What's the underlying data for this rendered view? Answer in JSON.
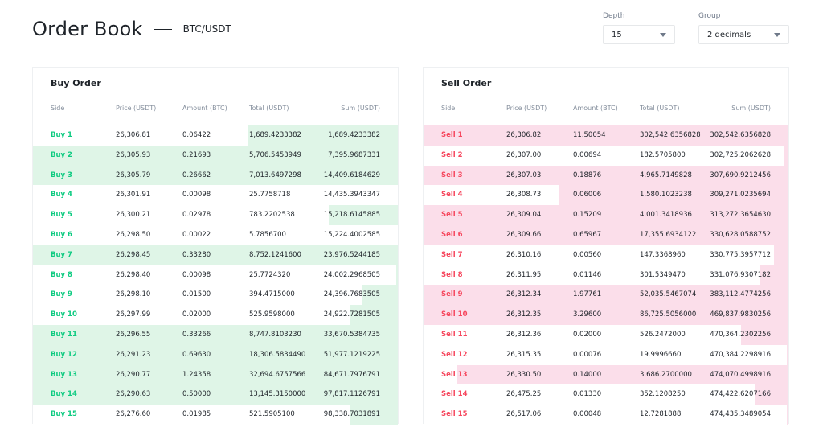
{
  "header": {
    "title": "Order Book",
    "pair": "BTC/USDT"
  },
  "controls": {
    "depth": {
      "label": "Depth",
      "value": "15"
    },
    "group": {
      "label": "Group",
      "value": "2 decimals"
    }
  },
  "columns": [
    "Side",
    "Price (USDT)",
    "Amount (BTC)",
    "Total (USDT)",
    "Sum (USDT)"
  ],
  "colors": {
    "buy": "#0ecb81",
    "buy_bg": "#dff5e7",
    "sell": "#f6465d",
    "sell_bg": "#fbdeea"
  },
  "buy": {
    "title": "Buy Order",
    "rows": [
      {
        "side": "Buy 1",
        "price": "26,306.81",
        "amount": "0.06422",
        "total": "1,689.4233382",
        "sum": "1,689.4233382",
        "full": false,
        "depth": 0.41
      },
      {
        "side": "Buy 2",
        "price": "26,305.93",
        "amount": "0.21693",
        "total": "5,706.5453949",
        "sum": "7,395.9687331",
        "full": true,
        "depth": 1
      },
      {
        "side": "Buy 3",
        "price": "26,305.79",
        "amount": "0.26662",
        "total": "7,013.6497298",
        "sum": "14,409.6184629",
        "full": true,
        "depth": 1
      },
      {
        "side": "Buy 4",
        "price": "26,301.91",
        "amount": "0.00098",
        "total": "25.7758718",
        "sum": "14,435.3943347",
        "full": false,
        "depth": 0
      },
      {
        "side": "Buy 5",
        "price": "26,300.21",
        "amount": "0.02978",
        "total": "783.2202538",
        "sum": "15,218.6145885",
        "full": false,
        "depth": 0.19
      },
      {
        "side": "Buy 6",
        "price": "26,298.50",
        "amount": "0.00022",
        "total": "5.7856700",
        "sum": "15,224.4002585",
        "full": false,
        "depth": 0
      },
      {
        "side": "Buy 7",
        "price": "26,298.45",
        "amount": "0.33280",
        "total": "8,752.1241600",
        "sum": "23,976.5244185",
        "full": true,
        "depth": 1
      },
      {
        "side": "Buy 8",
        "price": "26,298.40",
        "amount": "0.00098",
        "total": "25.7724320",
        "sum": "24,002.2968505",
        "full": false,
        "depth": 0.005
      },
      {
        "side": "Buy 9",
        "price": "26,298.10",
        "amount": "0.01500",
        "total": "394.4715000",
        "sum": "24,396.7683505",
        "full": false,
        "depth": 0.1
      },
      {
        "side": "Buy 10",
        "price": "26,297.99",
        "amount": "0.02000",
        "total": "525.9598000",
        "sum": "24,922.7281505",
        "full": false,
        "depth": 0.13
      },
      {
        "side": "Buy 11",
        "price": "26,296.55",
        "amount": "0.33266",
        "total": "8,747.8103230",
        "sum": "33,670.5384735",
        "full": true,
        "depth": 1
      },
      {
        "side": "Buy 12",
        "price": "26,291.23",
        "amount": "0.69630",
        "total": "18,306.5834490",
        "sum": "51,977.1219225",
        "full": true,
        "depth": 1
      },
      {
        "side": "Buy 13",
        "price": "26,290.77",
        "amount": "1.24358",
        "total": "32,694.6757566",
        "sum": "84,671.7976791",
        "full": true,
        "depth": 1
      },
      {
        "side": "Buy 14",
        "price": "26,290.63",
        "amount": "0.50000",
        "total": "13,145.3150000",
        "sum": "97,817.1126791",
        "full": true,
        "depth": 1
      },
      {
        "side": "Buy 15",
        "price": "26,276.60",
        "amount": "0.01985",
        "total": "521.5905100",
        "sum": "98,338.7031891",
        "full": false,
        "depth": 0.13
      }
    ]
  },
  "sell": {
    "title": "Sell Order",
    "rows": [
      {
        "side": "Sell 1",
        "price": "26,306.82",
        "amount": "11.50054",
        "total": "302,542.6356828",
        "sum": "302,542.6356828",
        "full": true,
        "depth": 1
      },
      {
        "side": "Sell 2",
        "price": "26,307.00",
        "amount": "0.00694",
        "total": "182.5705800",
        "sum": "302,725.2062628",
        "full": false,
        "depth": 0.01
      },
      {
        "side": "Sell 3",
        "price": "26,307.03",
        "amount": "0.18876",
        "total": "4,965.7149828",
        "sum": "307,690.9212456",
        "full": true,
        "depth": 1
      },
      {
        "side": "Sell 4",
        "price": "26,308.73",
        "amount": "0.06006",
        "total": "1,580.1023238",
        "sum": "309,271.0235694",
        "full": false,
        "depth": 0.63
      },
      {
        "side": "Sell 5",
        "price": "26,309.04",
        "amount": "0.15209",
        "total": "4,001.3418936",
        "sum": "313,272.3654630",
        "full": true,
        "depth": 1
      },
      {
        "side": "Sell 6",
        "price": "26,309.66",
        "amount": "0.65967",
        "total": "17,355.6934122",
        "sum": "330,628.0588752",
        "full": true,
        "depth": 1
      },
      {
        "side": "Sell 7",
        "price": "26,310.16",
        "amount": "0.00560",
        "total": "147.3368960",
        "sum": "330,775.3957712",
        "full": false,
        "depth": 0.04
      },
      {
        "side": "Sell 8",
        "price": "26,311.95",
        "amount": "0.01146",
        "total": "301.5349470",
        "sum": "331,076.9307182",
        "full": false,
        "depth": 0.08
      },
      {
        "side": "Sell 9",
        "price": "26,312.34",
        "amount": "1.97761",
        "total": "52,035.5467074",
        "sum": "383,112.4774256",
        "full": true,
        "depth": 1
      },
      {
        "side": "Sell 10",
        "price": "26,312.35",
        "amount": "3.29600",
        "total": "86,725.5056000",
        "sum": "469,837.9830256",
        "full": true,
        "depth": 1
      },
      {
        "side": "Sell 11",
        "price": "26,312.36",
        "amount": "0.02000",
        "total": "526.2472000",
        "sum": "470,364.2302256",
        "full": false,
        "depth": 0.13
      },
      {
        "side": "Sell 12",
        "price": "26,315.35",
        "amount": "0.00076",
        "total": "19.9996660",
        "sum": "470,384.2298916",
        "full": false,
        "depth": 0.005
      },
      {
        "side": "Sell 13",
        "price": "26,330.50",
        "amount": "0.14000",
        "total": "3,686.2700000",
        "sum": "474,070.4998916",
        "full": false,
        "depth": 0.91
      },
      {
        "side": "Sell 14",
        "price": "26,475.25",
        "amount": "0.01330",
        "total": "352.1208250",
        "sum": "474,422.6207166",
        "full": false,
        "depth": 0.09
      },
      {
        "side": "Sell 15",
        "price": "26,517.06",
        "amount": "0.00048",
        "total": "12.7281888",
        "sum": "474,435.3489054",
        "full": false,
        "depth": 0.005
      }
    ]
  }
}
